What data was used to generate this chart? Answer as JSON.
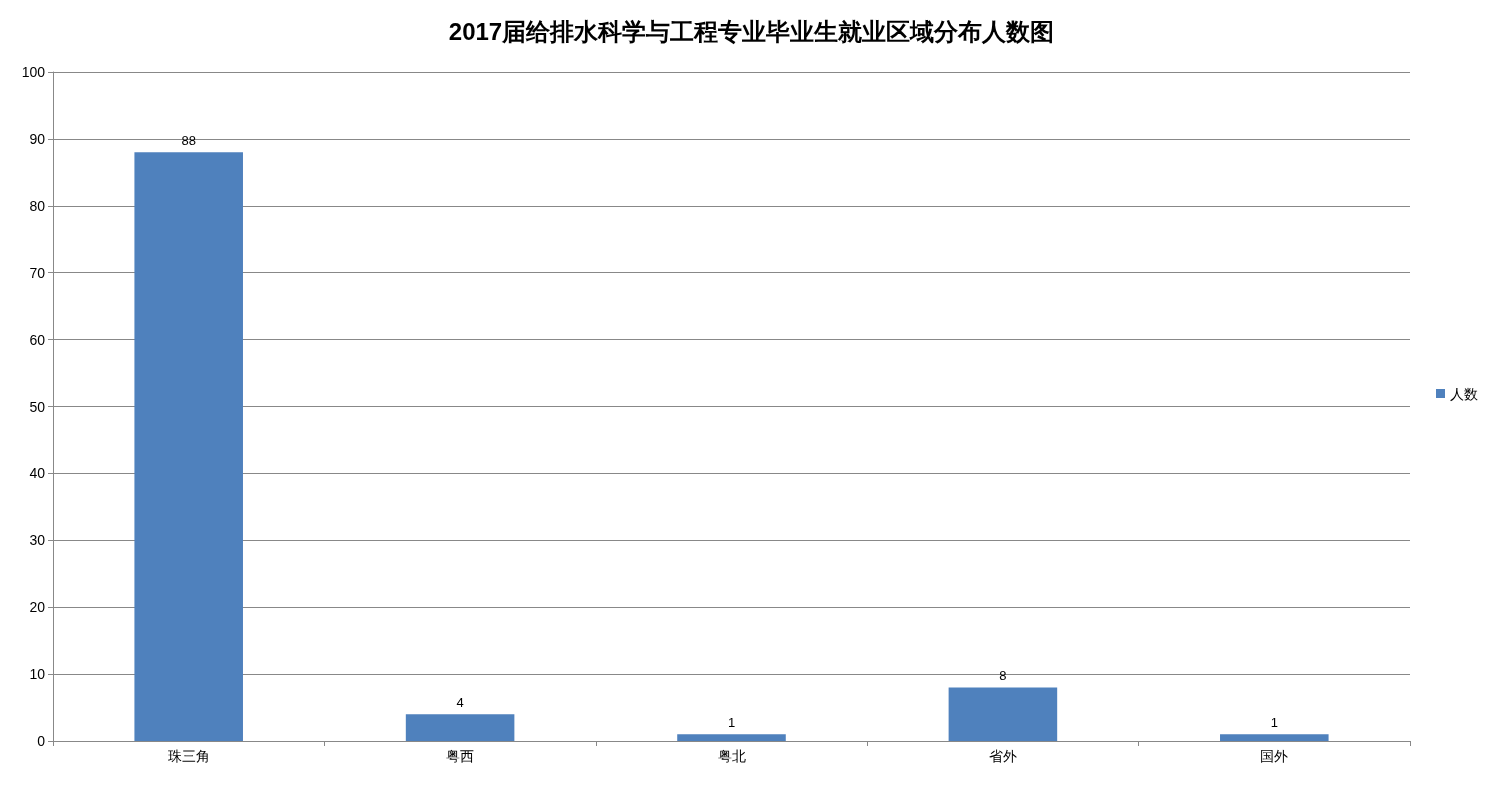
{
  "chart_data": {
    "type": "bar",
    "title": "2017届给排水科学与工程专业毕业生就业区域分布人数图",
    "categories": [
      "珠三角",
      "粤西",
      "粤北",
      "省外",
      "国外"
    ],
    "series": [
      {
        "name": "人数",
        "color": "#4f81bd",
        "values": [
          88,
          4,
          1,
          8,
          1
        ]
      }
    ],
    "ylim": [
      0,
      100
    ],
    "yticks": [
      0,
      10,
      20,
      30,
      40,
      50,
      60,
      70,
      80,
      90,
      100
    ],
    "grid": "y",
    "legend": "right",
    "data_labels": true
  }
}
